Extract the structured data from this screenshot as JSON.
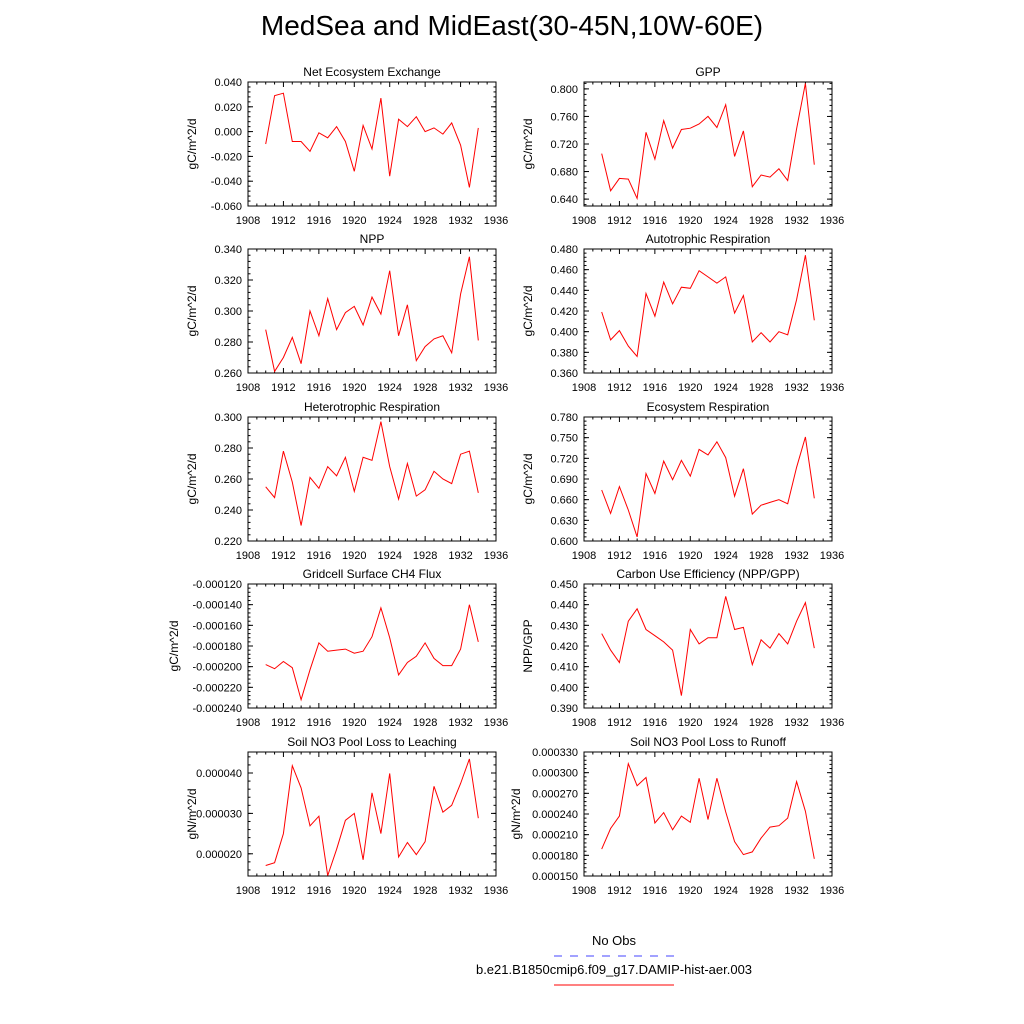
{
  "figure": {
    "title": "MedSea and MidEast(30-45N,10W-60E)",
    "legend": [
      {
        "name": "No Obs",
        "color": "#4444ff",
        "dash": true
      },
      {
        "name": "b.e21.B1850cmip6.f09_g17.DAMIP-hist-aer.003",
        "color": "#ff0000",
        "dash": false
      }
    ]
  },
  "chart_data": [
    {
      "type": "line",
      "title": "Net Ecosystem Exchange",
      "ylabel": "gC/m^2/d",
      "xlim": [
        1908,
        1936
      ],
      "ylim": [
        -0.06,
        0.04
      ],
      "xticks": [
        "1908",
        "1912",
        "1916",
        "1920",
        "1924",
        "1928",
        "1932",
        "1936"
      ],
      "yticks": [
        "-0.060",
        "-0.040",
        "-0.020",
        "0.000",
        "0.020",
        "0.040"
      ],
      "x": [
        1910,
        1911,
        1912,
        1913,
        1914,
        1915,
        1916,
        1917,
        1918,
        1919,
        1920,
        1921,
        1922,
        1923,
        1924,
        1925,
        1926,
        1927,
        1928,
        1929,
        1930,
        1931,
        1932,
        1933,
        1934
      ],
      "series": [
        {
          "color": "#ff0000",
          "values": [
            -0.01,
            0.029,
            0.031,
            -0.008,
            -0.008,
            -0.016,
            -0.001,
            -0.005,
            0.004,
            -0.008,
            -0.032,
            0.005,
            -0.014,
            0.027,
            -0.036,
            0.01,
            0.004,
            0.012,
            0.0,
            0.003,
            -0.002,
            0.007,
            -0.011,
            -0.045,
            0.003
          ]
        }
      ]
    },
    {
      "type": "line",
      "title": "GPP",
      "ylabel": "gC/m^2/d",
      "xlim": [
        1908,
        1936
      ],
      "ylim": [
        0.63,
        0.81
      ],
      "xticks": [
        "1908",
        "1912",
        "1916",
        "1920",
        "1924",
        "1928",
        "1932",
        "1936"
      ],
      "yticks": [
        "0.640",
        "0.680",
        "0.720",
        "0.760",
        "0.800"
      ],
      "x": [
        1910,
        1911,
        1912,
        1913,
        1914,
        1915,
        1916,
        1917,
        1918,
        1919,
        1920,
        1921,
        1922,
        1923,
        1924,
        1925,
        1926,
        1927,
        1928,
        1929,
        1930,
        1931,
        1932,
        1933,
        1934
      ],
      "series": [
        {
          "color": "#ff0000",
          "values": [
            0.706,
            0.652,
            0.67,
            0.669,
            0.641,
            0.737,
            0.698,
            0.754,
            0.714,
            0.741,
            0.743,
            0.749,
            0.76,
            0.744,
            0.777,
            0.702,
            0.739,
            0.658,
            0.675,
            0.672,
            0.684,
            0.667,
            0.742,
            0.808,
            0.69
          ]
        }
      ]
    },
    {
      "type": "line",
      "title": "NPP",
      "ylabel": "gC/m^2/d",
      "xlim": [
        1908,
        1936
      ],
      "ylim": [
        0.26,
        0.34
      ],
      "xticks": [
        "1908",
        "1912",
        "1916",
        "1920",
        "1924",
        "1928",
        "1932",
        "1936"
      ],
      "yticks": [
        "0.260",
        "0.280",
        "0.300",
        "0.320",
        "0.340"
      ],
      "x": [
        1910,
        1911,
        1912,
        1913,
        1914,
        1915,
        1916,
        1917,
        1918,
        1919,
        1920,
        1921,
        1922,
        1923,
        1924,
        1925,
        1926,
        1927,
        1928,
        1929,
        1930,
        1931,
        1932,
        1933,
        1934
      ],
      "series": [
        {
          "color": "#ff0000",
          "values": [
            0.288,
            0.261,
            0.27,
            0.283,
            0.266,
            0.3,
            0.284,
            0.308,
            0.288,
            0.299,
            0.303,
            0.291,
            0.309,
            0.298,
            0.326,
            0.284,
            0.304,
            0.268,
            0.277,
            0.282,
            0.284,
            0.273,
            0.311,
            0.335,
            0.281
          ]
        }
      ]
    },
    {
      "type": "line",
      "title": "Autotrophic Respiration",
      "ylabel": "gC/m^2/d",
      "xlim": [
        1908,
        1936
      ],
      "ylim": [
        0.36,
        0.48
      ],
      "xticks": [
        "1908",
        "1912",
        "1916",
        "1920",
        "1924",
        "1928",
        "1932",
        "1936"
      ],
      "yticks": [
        "0.360",
        "0.380",
        "0.400",
        "0.420",
        "0.440",
        "0.460",
        "0.480"
      ],
      "x": [
        1910,
        1911,
        1912,
        1913,
        1914,
        1915,
        1916,
        1917,
        1918,
        1919,
        1920,
        1921,
        1922,
        1923,
        1924,
        1925,
        1926,
        1927,
        1928,
        1929,
        1930,
        1931,
        1932,
        1933,
        1934
      ],
      "series": [
        {
          "color": "#ff0000",
          "values": [
            0.419,
            0.392,
            0.401,
            0.386,
            0.376,
            0.437,
            0.415,
            0.448,
            0.427,
            0.443,
            0.442,
            0.459,
            0.453,
            0.447,
            0.453,
            0.418,
            0.435,
            0.39,
            0.399,
            0.39,
            0.4,
            0.397,
            0.431,
            0.474,
            0.411
          ]
        }
      ]
    },
    {
      "type": "line",
      "title": "Heterotrophic Respiration",
      "ylabel": "gC/m^2/d",
      "xlim": [
        1908,
        1936
      ],
      "ylim": [
        0.22,
        0.3
      ],
      "xticks": [
        "1908",
        "1912",
        "1916",
        "1920",
        "1924",
        "1928",
        "1932",
        "1936"
      ],
      "yticks": [
        "0.220",
        "0.240",
        "0.260",
        "0.280",
        "0.300"
      ],
      "x": [
        1910,
        1911,
        1912,
        1913,
        1914,
        1915,
        1916,
        1917,
        1918,
        1919,
        1920,
        1921,
        1922,
        1923,
        1924,
        1925,
        1926,
        1927,
        1928,
        1929,
        1930,
        1931,
        1932,
        1933,
        1934
      ],
      "series": [
        {
          "color": "#ff0000",
          "values": [
            0.255,
            0.248,
            0.278,
            0.258,
            0.23,
            0.261,
            0.254,
            0.268,
            0.262,
            0.274,
            0.252,
            0.274,
            0.272,
            0.297,
            0.268,
            0.247,
            0.27,
            0.249,
            0.253,
            0.265,
            0.26,
            0.257,
            0.276,
            0.278,
            0.251
          ]
        }
      ]
    },
    {
      "type": "line",
      "title": "Ecosystem Respiration",
      "ylabel": "gC/m^2/d",
      "xlim": [
        1908,
        1936
      ],
      "ylim": [
        0.6,
        0.78
      ],
      "xticks": [
        "1908",
        "1912",
        "1916",
        "1920",
        "1924",
        "1928",
        "1932",
        "1936"
      ],
      "yticks": [
        "0.600",
        "0.630",
        "0.660",
        "0.690",
        "0.720",
        "0.750",
        "0.780"
      ],
      "x": [
        1910,
        1911,
        1912,
        1913,
        1914,
        1915,
        1916,
        1917,
        1918,
        1919,
        1920,
        1921,
        1922,
        1923,
        1924,
        1925,
        1926,
        1927,
        1928,
        1929,
        1930,
        1931,
        1932,
        1933,
        1934
      ],
      "series": [
        {
          "color": "#ff0000",
          "values": [
            0.674,
            0.64,
            0.679,
            0.645,
            0.606,
            0.698,
            0.669,
            0.716,
            0.689,
            0.717,
            0.694,
            0.733,
            0.725,
            0.744,
            0.721,
            0.665,
            0.705,
            0.639,
            0.652,
            0.656,
            0.66,
            0.654,
            0.707,
            0.751,
            0.662
          ]
        }
      ]
    },
    {
      "type": "line",
      "title": "Gridcell Surface CH4 Flux",
      "ylabel": "gC/m^2/d",
      "xlim": [
        1908,
        1936
      ],
      "ylim": [
        -0.00024,
        -0.00012
      ],
      "xticks": [
        "1908",
        "1912",
        "1916",
        "1920",
        "1924",
        "1928",
        "1932",
        "1936"
      ],
      "yticks": [
        "-0.000240",
        "-0.000220",
        "-0.000200",
        "-0.000180",
        "-0.000160",
        "-0.000140",
        "-0.000120"
      ],
      "x": [
        1910,
        1911,
        1912,
        1913,
        1914,
        1915,
        1916,
        1917,
        1918,
        1919,
        1920,
        1921,
        1922,
        1923,
        1924,
        1925,
        1926,
        1927,
        1928,
        1929,
        1930,
        1931,
        1932,
        1933,
        1934
      ],
      "series": [
        {
          "color": "#ff0000",
          "values": [
            -0.000198,
            -0.000202,
            -0.000195,
            -0.000201,
            -0.000232,
            -0.000203,
            -0.000177,
            -0.000185,
            -0.000184,
            -0.000183,
            -0.000187,
            -0.000185,
            -0.000171,
            -0.000143,
            -0.000172,
            -0.000208,
            -0.000196,
            -0.00019,
            -0.000177,
            -0.000192,
            -0.000199,
            -0.000199,
            -0.000183,
            -0.00014,
            -0.000176
          ]
        }
      ]
    },
    {
      "type": "line",
      "title": "Carbon Use Efficiency (NPP/GPP)",
      "ylabel": "NPP/GPP",
      "xlim": [
        1908,
        1936
      ],
      "ylim": [
        0.39,
        0.45
      ],
      "xticks": [
        "1908",
        "1912",
        "1916",
        "1920",
        "1924",
        "1928",
        "1932",
        "1936"
      ],
      "yticks": [
        "0.390",
        "0.400",
        "0.410",
        "0.420",
        "0.430",
        "0.440",
        "0.450"
      ],
      "x": [
        1910,
        1911,
        1912,
        1913,
        1914,
        1915,
        1916,
        1917,
        1918,
        1919,
        1920,
        1921,
        1922,
        1923,
        1924,
        1925,
        1926,
        1927,
        1928,
        1929,
        1930,
        1931,
        1932,
        1933,
        1934
      ],
      "series": [
        {
          "color": "#ff0000",
          "values": [
            0.426,
            0.418,
            0.412,
            0.432,
            0.438,
            0.428,
            0.425,
            0.422,
            0.418,
            0.396,
            0.428,
            0.421,
            0.424,
            0.424,
            0.444,
            0.428,
            0.429,
            0.411,
            0.423,
            0.419,
            0.426,
            0.421,
            0.432,
            0.441,
            0.419
          ]
        }
      ]
    },
    {
      "type": "line",
      "title": "Soil NO3 Pool Loss to Leaching",
      "ylabel": "gN/m^2/d",
      "xlim": [
        1908,
        1936
      ],
      "ylim": [
        1.45e-05,
        4.52e-05
      ],
      "xticks": [
        "1908",
        "1912",
        "1916",
        "1920",
        "1924",
        "1928",
        "1932",
        "1936"
      ],
      "yticks": [
        "0.000020",
        "0.000030",
        "0.000040"
      ],
      "x": [
        1910,
        1911,
        1912,
        1913,
        1914,
        1915,
        1916,
        1917,
        1918,
        1919,
        1920,
        1921,
        1922,
        1923,
        1924,
        1925,
        1926,
        1927,
        1928,
        1929,
        1930,
        1931,
        1932,
        1933,
        1934
      ],
      "series": [
        {
          "color": "#ff0000",
          "values": [
            1.71e-05,
            1.78e-05,
            2.5e-05,
            4.18e-05,
            3.63e-05,
            2.69e-05,
            2.93e-05,
            1.46e-05,
            2.11e-05,
            2.83e-05,
            3e-05,
            1.85e-05,
            3.51e-05,
            2.5e-05,
            3.99e-05,
            1.92e-05,
            2.28e-05,
            1.98e-05,
            2.3e-05,
            3.67e-05,
            3.03e-05,
            3.2e-05,
            3.74e-05,
            4.35e-05,
            2.88e-05
          ]
        }
      ]
    },
    {
      "type": "line",
      "title": "Soil NO3 Pool Loss to Runoff",
      "ylabel": "gN/m^2/d",
      "xlim": [
        1908,
        1936
      ],
      "ylim": [
        0.00015,
        0.00033
      ],
      "xticks": [
        "1908",
        "1912",
        "1916",
        "1920",
        "1924",
        "1928",
        "1932",
        "1936"
      ],
      "yticks": [
        "0.000150",
        "0.000180",
        "0.000210",
        "0.000240",
        "0.000270",
        "0.000300",
        "0.000330"
      ],
      "x": [
        1910,
        1911,
        1912,
        1913,
        1914,
        1915,
        1916,
        1917,
        1918,
        1919,
        1920,
        1921,
        1922,
        1923,
        1924,
        1925,
        1926,
        1927,
        1928,
        1929,
        1930,
        1931,
        1932,
        1933,
        1934
      ],
      "series": [
        {
          "color": "#ff0000",
          "values": [
            0.000189,
            0.000219,
            0.000237,
            0.000313,
            0.000281,
            0.000293,
            0.000227,
            0.000242,
            0.000217,
            0.000237,
            0.000228,
            0.000292,
            0.000232,
            0.000292,
            0.000243,
            0.0002,
            0.000181,
            0.000185,
            0.000205,
            0.000221,
            0.000223,
            0.000234,
            0.000287,
            0.000244,
            0.000175
          ]
        }
      ]
    }
  ]
}
